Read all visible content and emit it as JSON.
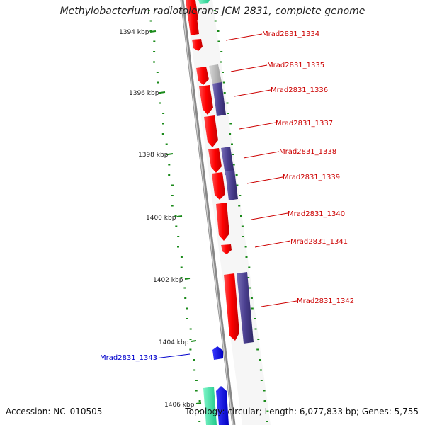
{
  "title": "Methylobacterium radiotolerans JCM 2831, complete genome",
  "footer": {
    "accession": "Accession: NC_010505",
    "topology": "Topology: circular; Length: 6,077,833 bp; Genes: 5,755"
  },
  "colors": {
    "forward_gene": "#ff0000",
    "reverse_gene": "#4a3f8f",
    "unknown_gene": "#b8b8b8",
    "blue_gene": "#0000ff",
    "green_gene": "#33e0a0",
    "axis": "#888888",
    "gc_dots": "#1a8a1a",
    "label_red": "#cc0000",
    "label_blue": "#0000cc"
  },
  "kbp_ticks": [
    {
      "label": "1394 kbp"
    },
    {
      "label": "1396 kbp"
    },
    {
      "label": "1398 kbp"
    },
    {
      "label": "1400 kbp"
    },
    {
      "label": "1402 kbp"
    },
    {
      "label": "1404 kbp"
    },
    {
      "label": "1406 kbp"
    }
  ],
  "gene_labels": [
    {
      "text": "Mrad2831_1334",
      "color": "red"
    },
    {
      "text": "Mrad2831_1335",
      "color": "red"
    },
    {
      "text": "Mrad2831_1336",
      "color": "red"
    },
    {
      "text": "Mrad2831_1337",
      "color": "red"
    },
    {
      "text": "Mrad2831_1338",
      "color": "red"
    },
    {
      "text": "Mrad2831_1339",
      "color": "red"
    },
    {
      "text": "Mrad2831_1340",
      "color": "red"
    },
    {
      "text": "Mrad2831_1341",
      "color": "red"
    },
    {
      "text": "Mrad2831_1342",
      "color": "red"
    },
    {
      "text": "Mrad2831_1343",
      "color": "blue"
    }
  ]
}
